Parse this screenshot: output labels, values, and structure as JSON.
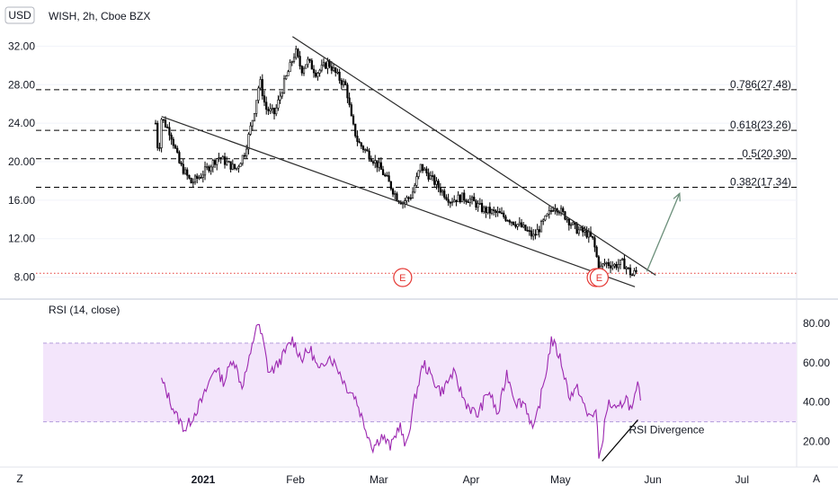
{
  "currency_badge": "USD",
  "main_title": "WISH, 2h, Cboe BZX",
  "rsi_title": "RSI (14, close)",
  "corner_left": "Z",
  "corner_right": "A",
  "colors": {
    "candle": "#000000",
    "trendline": "#2a2a2a",
    "fib_line": "#000000",
    "price_level": "#e53935",
    "earnings": "#e53935",
    "projection_arrow": "#6b8f7a",
    "rsi_line": "#9c27b0",
    "rsi_band": "#f3e5fb",
    "rsi_band_border": "#b39ddb",
    "divergence_line": "#000000"
  },
  "chart_data": [
    {
      "type": "candlestick",
      "title": "WISH, 2h, Cboe BZX",
      "currency": "USD",
      "ylim": [
        6.0,
        34.0
      ],
      "y_ticks": [
        "8.00",
        "12.00",
        "16.00",
        "20.00",
        "24.00",
        "28.00",
        "32.00"
      ],
      "y_tick_values": [
        8,
        12,
        16,
        20,
        24,
        28,
        32
      ],
      "x_tick_labels": [
        "2021",
        "Feb",
        "Mar",
        "Apr",
        "May",
        "Jun",
        "Jul"
      ],
      "grid": "horizontal",
      "close_path": [
        {
          "t": "2020-12-16",
          "close": 24.0
        },
        {
          "t": "2020-12-17",
          "close": 20.5
        },
        {
          "t": "2020-12-18",
          "close": 24.5
        },
        {
          "t": "2020-12-21",
          "close": 23.0
        },
        {
          "t": "2020-12-24",
          "close": 19.8
        },
        {
          "t": "2020-12-28",
          "close": 17.8
        },
        {
          "t": "2020-12-31",
          "close": 18.5
        },
        {
          "t": "2021-01-06",
          "close": 20.5
        },
        {
          "t": "2021-01-12",
          "close": 19.2
        },
        {
          "t": "2021-01-15",
          "close": 21.0
        },
        {
          "t": "2021-01-18",
          "close": 25.0
        },
        {
          "t": "2021-01-20",
          "close": 28.5
        },
        {
          "t": "2021-01-22",
          "close": 25.5
        },
        {
          "t": "2021-01-25",
          "close": 25.0
        },
        {
          "t": "2021-01-28",
          "close": 28.0
        },
        {
          "t": "2021-02-01",
          "close": 31.5
        },
        {
          "t": "2021-02-03",
          "close": 29.5
        },
        {
          "t": "2021-02-05",
          "close": 30.5
        },
        {
          "t": "2021-02-08",
          "close": 29.2
        },
        {
          "t": "2021-02-12",
          "close": 30.3
        },
        {
          "t": "2021-02-16",
          "close": 28.5
        },
        {
          "t": "2021-02-18",
          "close": 27.8
        },
        {
          "t": "2021-02-20",
          "close": 24.0
        },
        {
          "t": "2021-02-22",
          "close": 22.0
        },
        {
          "t": "2021-02-25",
          "close": 21.0
        },
        {
          "t": "2021-03-01",
          "close": 19.5
        },
        {
          "t": "2021-03-04",
          "close": 18.0
        },
        {
          "t": "2021-03-07",
          "close": 16.3
        },
        {
          "t": "2021-03-09",
          "close": 15.8
        },
        {
          "t": "2021-03-12",
          "close": 16.5
        },
        {
          "t": "2021-03-15",
          "close": 19.5
        },
        {
          "t": "2021-03-18",
          "close": 18.5
        },
        {
          "t": "2021-03-22",
          "close": 17.0
        },
        {
          "t": "2021-03-25",
          "close": 16.0
        },
        {
          "t": "2021-03-29",
          "close": 16.3
        },
        {
          "t": "2021-04-01",
          "close": 16.0
        },
        {
          "t": "2021-04-05",
          "close": 15.0
        },
        {
          "t": "2021-04-10",
          "close": 14.6
        },
        {
          "t": "2021-04-14",
          "close": 14.0
        },
        {
          "t": "2021-04-18",
          "close": 13.2
        },
        {
          "t": "2021-04-22",
          "close": 12.2
        },
        {
          "t": "2021-04-27",
          "close": 14.5
        },
        {
          "t": "2021-04-29",
          "close": 15.5
        },
        {
          "t": "2021-05-03",
          "close": 14.2
        },
        {
          "t": "2021-05-06",
          "close": 13.0
        },
        {
          "t": "2021-05-10",
          "close": 12.5
        },
        {
          "t": "2021-05-12",
          "close": 11.8
        },
        {
          "t": "2021-05-14",
          "close": 8.8
        },
        {
          "t": "2021-05-16",
          "close": 9.5
        },
        {
          "t": "2021-05-19",
          "close": 9.2
        },
        {
          "t": "2021-05-22",
          "close": 9.5
        },
        {
          "t": "2021-05-25",
          "close": 8.2
        },
        {
          "t": "2021-05-27",
          "close": 8.8
        }
      ],
      "trendlines": [
        {
          "from": {
            "t": "2021-01-31",
            "y": 33.0
          },
          "to": {
            "t": "2021-06-02",
            "y": 8.2
          }
        },
        {
          "from": {
            "t": "2020-12-18",
            "y": 24.7
          },
          "to": {
            "t": "2021-05-26",
            "y": 7.0
          }
        }
      ],
      "fibonacci_levels": [
        {
          "label": "0.786(27.48)",
          "value": 27.48
        },
        {
          "label": "0.618(23.26)",
          "value": 23.26
        },
        {
          "label": "0.5(20.30)",
          "value": 20.3
        },
        {
          "label": "0.382(17.34)",
          "value": 17.34
        }
      ],
      "price_line": 8.4,
      "projection_arrow": {
        "from": {
          "t": "2021-05-30",
          "y": 8.6
        },
        "to": {
          "t": "2021-06-10",
          "y": 16.7
        }
      },
      "earnings_markers": [
        {
          "t": "2021-03-09",
          "label": "E"
        },
        {
          "t": "2021-05-13",
          "label": "E"
        },
        {
          "t": "2021-05-14",
          "label": "E"
        }
      ]
    },
    {
      "type": "line",
      "title": "RSI (14, close)",
      "ylim": [
        7.0,
        91.0
      ],
      "y_ticks": [
        "20.00",
        "40.00",
        "60.00",
        "80.00"
      ],
      "y_tick_values": [
        20,
        40,
        60,
        80
      ],
      "band": [
        30,
        70
      ],
      "series": [
        {
          "values": [
            {
              "t": "2020-12-18",
              "y": 51
            },
            {
              "t": "2020-12-20",
              "y": 44
            },
            {
              "t": "2020-12-23",
              "y": 33
            },
            {
              "t": "2020-12-26",
              "y": 26
            },
            {
              "t": "2020-12-29",
              "y": 34
            },
            {
              "t": "2021-01-01",
              "y": 42
            },
            {
              "t": "2021-01-05",
              "y": 58
            },
            {
              "t": "2021-01-08",
              "y": 50
            },
            {
              "t": "2021-01-11",
              "y": 63
            },
            {
              "t": "2021-01-14",
              "y": 48
            },
            {
              "t": "2021-01-17",
              "y": 64
            },
            {
              "t": "2021-01-19",
              "y": 81
            },
            {
              "t": "2021-01-21",
              "y": 72
            },
            {
              "t": "2021-01-23",
              "y": 55
            },
            {
              "t": "2021-01-25",
              "y": 57
            },
            {
              "t": "2021-01-28",
              "y": 64
            },
            {
              "t": "2021-01-31",
              "y": 72
            },
            {
              "t": "2021-02-03",
              "y": 62
            },
            {
              "t": "2021-02-06",
              "y": 67
            },
            {
              "t": "2021-02-09",
              "y": 55
            },
            {
              "t": "2021-02-12",
              "y": 64
            },
            {
              "t": "2021-02-15",
              "y": 58
            },
            {
              "t": "2021-02-18",
              "y": 48
            },
            {
              "t": "2021-02-21",
              "y": 43
            },
            {
              "t": "2021-02-24",
              "y": 29
            },
            {
              "t": "2021-02-27",
              "y": 17
            },
            {
              "t": "2021-03-02",
              "y": 23
            },
            {
              "t": "2021-03-05",
              "y": 17
            },
            {
              "t": "2021-03-08",
              "y": 29
            },
            {
              "t": "2021-03-10",
              "y": 16
            },
            {
              "t": "2021-03-13",
              "y": 41
            },
            {
              "t": "2021-03-16",
              "y": 60
            },
            {
              "t": "2021-03-19",
              "y": 52
            },
            {
              "t": "2021-03-22",
              "y": 45
            },
            {
              "t": "2021-03-26",
              "y": 55
            },
            {
              "t": "2021-03-30",
              "y": 40
            },
            {
              "t": "2021-04-03",
              "y": 33
            },
            {
              "t": "2021-04-07",
              "y": 46
            },
            {
              "t": "2021-04-10",
              "y": 33
            },
            {
              "t": "2021-04-13",
              "y": 55
            },
            {
              "t": "2021-04-16",
              "y": 40
            },
            {
              "t": "2021-04-19",
              "y": 40
            },
            {
              "t": "2021-04-22",
              "y": 25
            },
            {
              "t": "2021-04-26",
              "y": 54
            },
            {
              "t": "2021-04-28",
              "y": 72
            },
            {
              "t": "2021-05-01",
              "y": 62
            },
            {
              "t": "2021-05-04",
              "y": 43
            },
            {
              "t": "2021-05-07",
              "y": 47
            },
            {
              "t": "2021-05-10",
              "y": 33
            },
            {
              "t": "2021-05-13",
              "y": 35
            },
            {
              "t": "2021-05-14",
              "y": 10
            },
            {
              "t": "2021-05-17",
              "y": 40
            },
            {
              "t": "2021-05-20",
              "y": 35
            },
            {
              "t": "2021-05-23",
              "y": 43
            },
            {
              "t": "2021-05-25",
              "y": 35
            },
            {
              "t": "2021-05-27",
              "y": 48
            },
            {
              "t": "2021-05-28",
              "y": 43
            }
          ]
        }
      ],
      "divergence_line": {
        "from": {
          "t": "2021-05-15",
          "y": 10
        },
        "to": {
          "t": "2021-05-27",
          "y": 31
        }
      },
      "annotation": "RSI Divergence"
    }
  ]
}
